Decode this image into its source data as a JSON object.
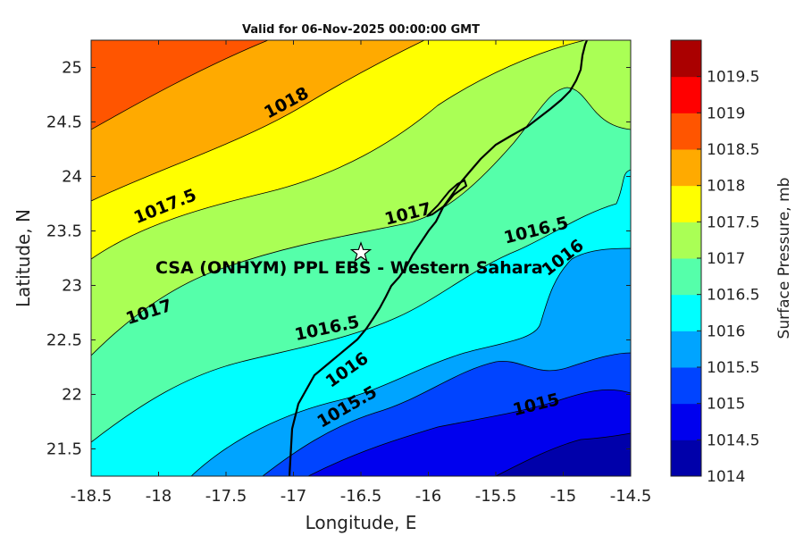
{
  "chart_data": {
    "type": "contour-map",
    "title": "Valid for 06-Nov-2025 00:00:00 GMT",
    "xlabel": "Longitude, E",
    "ylabel": "Latitude, N",
    "xlim": [
      -18.5,
      -14.5
    ],
    "ylim": [
      21.25,
      25.25
    ],
    "xticks": [
      "-18.5",
      "-18",
      "-17.5",
      "-17",
      "-16.5",
      "-16",
      "-15.5",
      "-15",
      "-14.5"
    ],
    "yticks": [
      "21.5",
      "22",
      "22.5",
      "23",
      "23.5",
      "24",
      "24.5",
      "25"
    ],
    "colorbar": {
      "label": "Surface Pressure, mb",
      "levels": [
        "1014",
        "1014.5",
        "1015",
        "1015.5",
        "1016",
        "1016.5",
        "1017",
        "1017.5",
        "1018",
        "1018.5",
        "1019",
        "1019.5"
      ],
      "colors": [
        "#0000aa",
        "#0000ee",
        "#0044ff",
        "#00a4ff",
        "#00ffff",
        "#55ffaa",
        "#aaff55",
        "#ffff00",
        "#ffaa00",
        "#ff5500",
        "#ff0000",
        "#aa0000"
      ]
    },
    "contour_labels": [
      {
        "text": "1018",
        "lon": -17.05,
        "lat": 24.67
      },
      {
        "text": "1017.5",
        "lon": -17.95,
        "lat": 23.72
      },
      {
        "text": "1017",
        "lon": -16.15,
        "lat": 23.65
      },
      {
        "text": "1017",
        "lon": -18.07,
        "lat": 22.75
      },
      {
        "text": "1016.5",
        "lon": -15.2,
        "lat": 23.5
      },
      {
        "text": "1016",
        "lon": -15.0,
        "lat": 23.25
      },
      {
        "text": "1016.5",
        "lon": -16.75,
        "lat": 22.6
      },
      {
        "text": "1016",
        "lon": -16.6,
        "lat": 22.22
      },
      {
        "text": "1015.5",
        "lon": -16.6,
        "lat": 21.88
      },
      {
        "text": "1015",
        "lon": -15.2,
        "lat": 21.9
      }
    ],
    "station": {
      "name": "CSA (ONHYM) PPL EBS - Western Sahara",
      "lon": -16.5,
      "lat": 23.3
    }
  }
}
